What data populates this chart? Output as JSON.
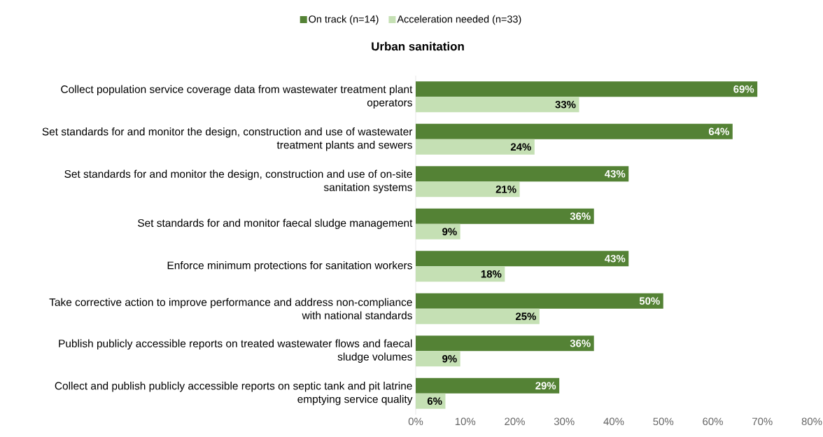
{
  "chart_data": {
    "type": "bar",
    "orientation": "horizontal",
    "title": "Urban sanitation",
    "categories": [
      "Collect population service coverage data from wastewater treatment plant operators",
      "Set standards for and monitor the design, construction and use of wastewater treatment plants and sewers",
      "Set standards for and monitor the design, construction and use of on-site sanitation systems",
      "Set standards for and monitor faecal sludge management",
      "Enforce minimum protections for sanitation workers",
      "Take corrective action to improve performance and address non-compliance with national standards",
      "Publish publicly accessible reports on treated wastewater flows and faecal sludge volumes",
      "Collect and publish publicly accessible reports on septic tank and pit latrine emptying service quality"
    ],
    "series": [
      {
        "name": "On track (n=14)",
        "color": "#548235",
        "values": [
          69,
          64,
          43,
          36,
          43,
          50,
          36,
          29
        ],
        "value_labels": [
          "69%",
          "64%",
          "43%",
          "36%",
          "43%",
          "50%",
          "36%",
          "29%"
        ]
      },
      {
        "name": "Acceleration needed (n=33)",
        "color": "#c5e0b4",
        "values": [
          33,
          24,
          21,
          9,
          18,
          25,
          9,
          6
        ],
        "value_labels": [
          "33%",
          "24%",
          "21%",
          "9%",
          "18%",
          "25%",
          "9%",
          "6%"
        ]
      }
    ],
    "xlim": [
      0,
      80
    ],
    "xticks": [
      {
        "value": 0,
        "label": "0%"
      },
      {
        "value": 10,
        "label": "10%"
      },
      {
        "value": 20,
        "label": "20%"
      },
      {
        "value": 30,
        "label": "30%"
      },
      {
        "value": 40,
        "label": "40%"
      },
      {
        "value": 50,
        "label": "50%"
      },
      {
        "value": 60,
        "label": "60%"
      },
      {
        "value": 70,
        "label": "70%"
      },
      {
        "value": 80,
        "label": "80%"
      }
    ],
    "grid": false,
    "legend": "top"
  }
}
